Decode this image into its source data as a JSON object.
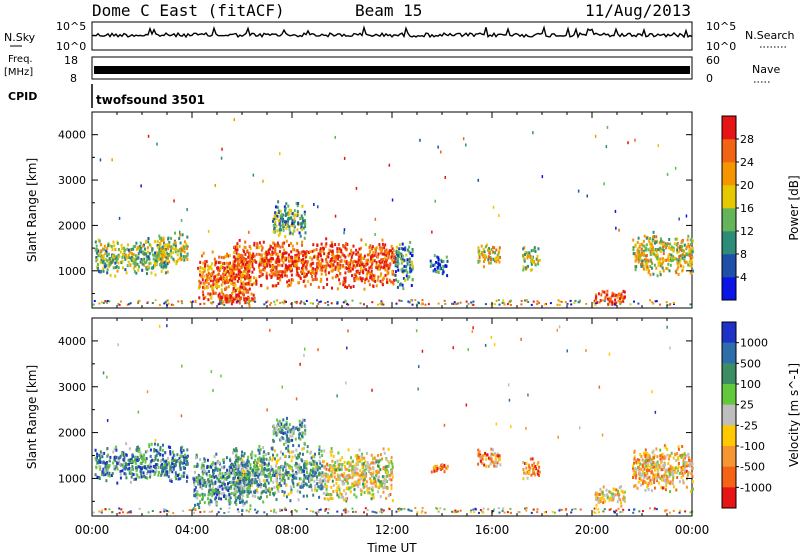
{
  "header": {
    "station": "Dome C East (fitACF)",
    "beam": "Beam 15",
    "date": "11/Aug/2013"
  },
  "strip_labels": {
    "nsky": "N.Sky",
    "nsky_ticks": [
      "10^5",
      "10^0"
    ],
    "freq": "Freq.",
    "freq_unit": "[MHz]",
    "freq_ticks": [
      "18",
      "8"
    ],
    "cpid": "CPID",
    "nsearch": "N.Search",
    "nsearch_ticks": [
      "10^5",
      "10^0"
    ],
    "nave": "Nave",
    "nave_ticks": [
      "60",
      "0"
    ],
    "program": "twofsound 3501"
  },
  "chart_data": [
    {
      "type": "heatmap",
      "name": "power",
      "ylabel": "Slant Range [km]",
      "xlabel": "Time UT",
      "ylim": [
        180,
        4500
      ],
      "xlim": [
        0,
        24
      ],
      "yticks": [
        "1000",
        "2000",
        "3000",
        "4000"
      ],
      "colorbar_label": "Power [dB]",
      "colorbar_ticks": [
        "4",
        "8",
        "12",
        "16",
        "20",
        "24",
        "28"
      ],
      "colorbar_colors": [
        "#0a14e6",
        "#1e50aa",
        "#2d8c78",
        "#64b45a",
        "#e6c800",
        "#f59600",
        "#f06414",
        "#e61414"
      ],
      "patches": [
        {
          "t": [
            0.1,
            3.0
          ],
          "r": [
            900,
            1750
          ],
          "level": 0.45
        },
        {
          "t": [
            2.6,
            3.8
          ],
          "r": [
            1100,
            1900
          ],
          "level": 0.5
        },
        {
          "t": [
            4.2,
            6.3
          ],
          "r": [
            300,
            1500
          ],
          "level": 0.75
        },
        {
          "t": [
            5.0,
            6.5
          ],
          "r": [
            240,
            600
          ],
          "level": 0.9
        },
        {
          "t": [
            5.6,
            12.1
          ],
          "r": [
            600,
            1750
          ],
          "level": 0.85
        },
        {
          "t": [
            7.2,
            8.5
          ],
          "r": [
            1700,
            2600
          ],
          "level": 0.35
        },
        {
          "t": [
            12.1,
            12.8
          ],
          "r": [
            600,
            1700
          ],
          "level": 0.3
        },
        {
          "t": [
            13.5,
            14.2
          ],
          "r": [
            900,
            1400
          ],
          "level": 0.2
        },
        {
          "t": [
            15.4,
            16.3
          ],
          "r": [
            1100,
            1700
          ],
          "level": 0.6
        },
        {
          "t": [
            17.2,
            17.9
          ],
          "r": [
            1000,
            1600
          ],
          "level": 0.5
        },
        {
          "t": [
            20.1,
            21.3
          ],
          "r": [
            250,
            600
          ],
          "level": 0.9
        },
        {
          "t": [
            21.6,
            24.0
          ],
          "r": [
            850,
            1900
          ],
          "level": 0.55
        }
      ]
    },
    {
      "type": "heatmap",
      "name": "velocity",
      "ylabel": "Slant Range [km]",
      "xlabel": "Time UT",
      "ylim": [
        180,
        4500
      ],
      "xlim": [
        0,
        24
      ],
      "yticks": [
        "1000",
        "2000",
        "3000",
        "4000"
      ],
      "colorbar_label": "Velocity [m s^-1]",
      "colorbar_ticks": [
        "1000",
        "500",
        "100",
        "25",
        "-25",
        "-100",
        "-500",
        "-1000"
      ],
      "colorbar_colors": [
        "#1e32c8",
        "#2d6eaa",
        "#3c8c64",
        "#64c83c",
        "#bebebe",
        "#ffc800",
        "#f59632",
        "#f56414",
        "#e61414"
      ],
      "patches": [
        {
          "t": [
            0.1,
            3.8
          ],
          "r": [
            900,
            1800
          ],
          "level": 0.25
        },
        {
          "t": [
            4.0,
            6.3
          ],
          "r": [
            300,
            1600
          ],
          "level": 0.3
        },
        {
          "t": [
            5.6,
            9.2
          ],
          "r": [
            500,
            1800
          ],
          "level": 0.35
        },
        {
          "t": [
            9.2,
            12.0
          ],
          "r": [
            500,
            1700
          ],
          "level": 0.55
        },
        {
          "t": [
            7.2,
            8.5
          ],
          "r": [
            1700,
            2400
          ],
          "level": 0.3
        },
        {
          "t": [
            13.5,
            14.2
          ],
          "r": [
            1100,
            1400
          ],
          "level": 0.8
        },
        {
          "t": [
            15.4,
            16.3
          ],
          "r": [
            1200,
            1700
          ],
          "level": 0.7
        },
        {
          "t": [
            17.2,
            17.9
          ],
          "r": [
            1000,
            1500
          ],
          "level": 0.75
        },
        {
          "t": [
            20.1,
            21.3
          ],
          "r": [
            400,
            900
          ],
          "level": 0.6
        },
        {
          "t": [
            21.6,
            24.0
          ],
          "r": [
            700,
            1800
          ],
          "level": 0.65
        }
      ]
    }
  ],
  "xticks": [
    "00:00",
    "04:00",
    "08:00",
    "12:00",
    "16:00",
    "20:00",
    "00:00"
  ]
}
